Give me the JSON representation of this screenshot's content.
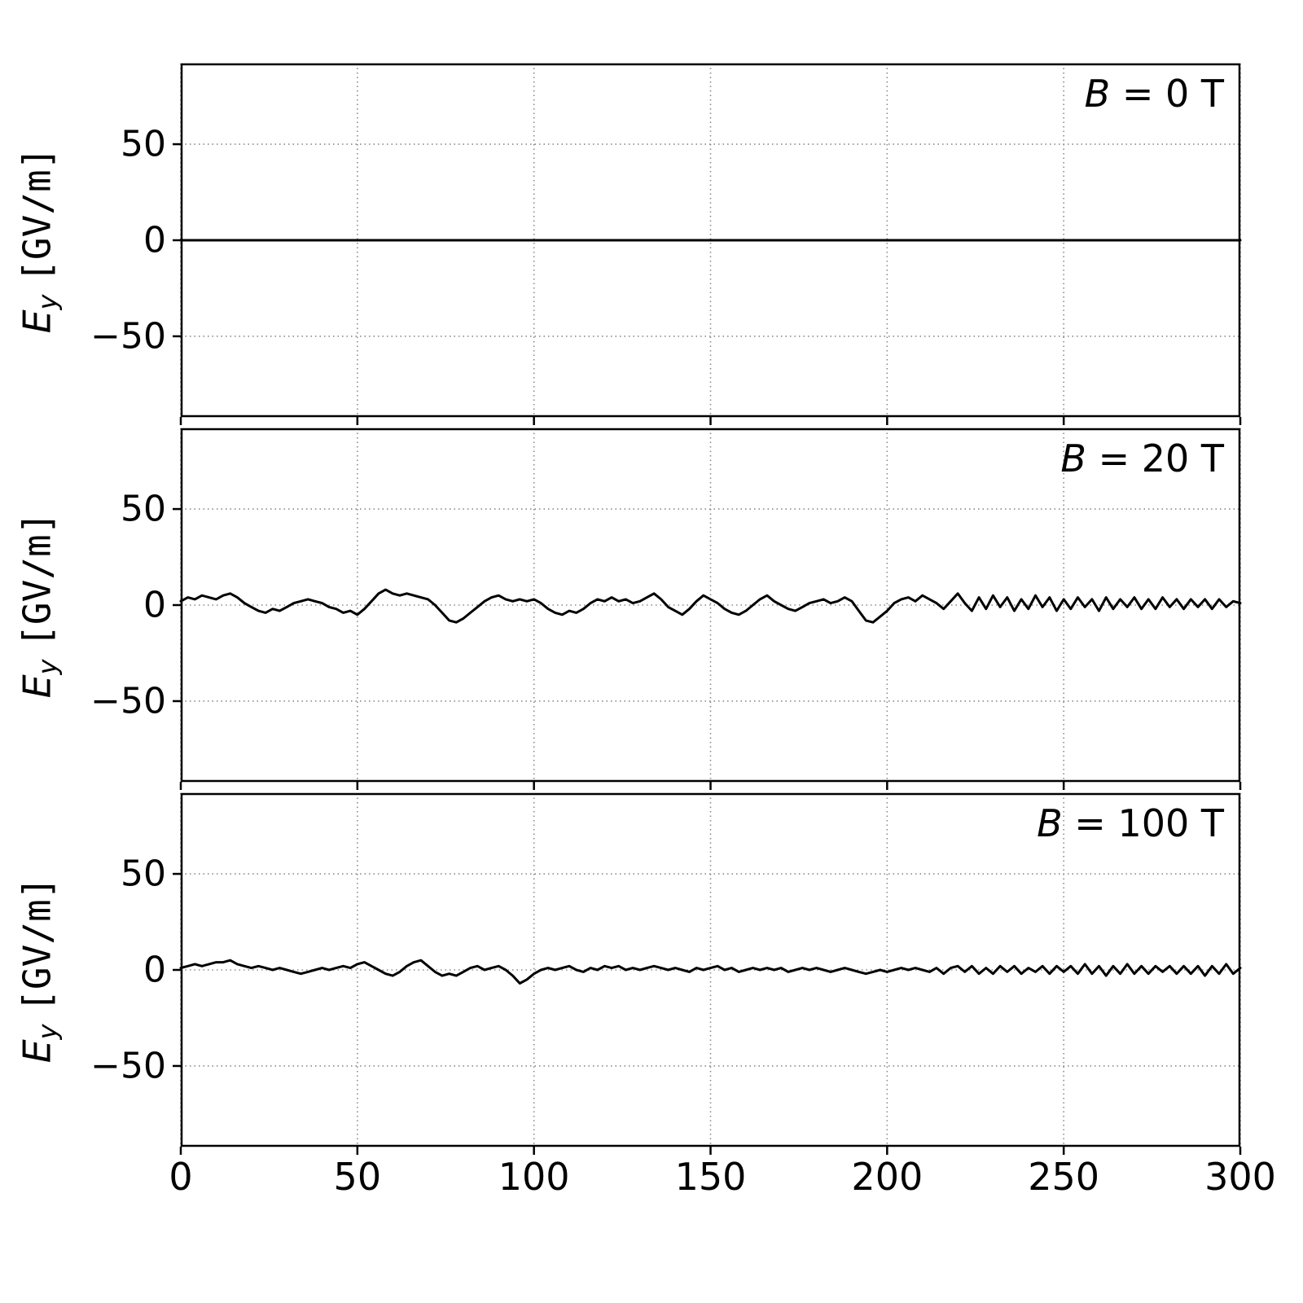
{
  "chart_data": {
    "type": "line",
    "title": "",
    "xlabel": "",
    "ylabel": {
      "variable": "E",
      "subscript": "y",
      "unit": "[GV/m]"
    },
    "xlim": [
      0,
      300
    ],
    "ylim": [
      -92,
      92
    ],
    "xticks": [
      0,
      50,
      100,
      150,
      200,
      250,
      300
    ],
    "xticklabels": [
      "0",
      "50",
      "100",
      "150",
      "200",
      "250",
      "300"
    ],
    "yticks": [
      50,
      0,
      -50
    ],
    "yticklabels": [
      "50",
      "0",
      "−50"
    ],
    "grid": "dotted",
    "line_color": "#000000",
    "grid_color": "#8a8a8a",
    "panels": [
      {
        "annotation": {
          "symbol": "B",
          "rest": " = 0 T"
        },
        "B_tesla": 0,
        "x": [
          0,
          300
        ],
        "values": [
          0,
          0
        ]
      },
      {
        "annotation": {
          "symbol": "B",
          "rest": " = 20 T"
        },
        "B_tesla": 20,
        "x_start": 0,
        "x_step": 2,
        "values": [
          2,
          4,
          3,
          5,
          4,
          3,
          5,
          6,
          4,
          1,
          -1,
          -3,
          -4,
          -2,
          -3,
          -1,
          1,
          2,
          3,
          2,
          1,
          -1,
          -2,
          -4,
          -3,
          -5,
          -2,
          2,
          6,
          8,
          6,
          5,
          6,
          5,
          4,
          3,
          0,
          -4,
          -8,
          -9,
          -7,
          -4,
          -1,
          2,
          4,
          5,
          3,
          2,
          3,
          2,
          3,
          1,
          -2,
          -4,
          -5,
          -3,
          -4,
          -2,
          1,
          3,
          2,
          4,
          2,
          3,
          1,
          2,
          4,
          6,
          3,
          -1,
          -3,
          -5,
          -2,
          2,
          5,
          3,
          1,
          -2,
          -4,
          -5,
          -3,
          0,
          3,
          5,
          2,
          0,
          -2,
          -3,
          -1,
          1,
          2,
          3,
          1,
          2,
          4,
          2,
          -3,
          -8,
          -9,
          -6,
          -3,
          1,
          3,
          4,
          2,
          5,
          3,
          1,
          -2,
          2,
          6,
          1,
          -3,
          4,
          -2,
          5,
          -1,
          4,
          -3,
          3,
          -2,
          5,
          -1,
          4,
          -3,
          3,
          -2,
          4,
          -1,
          3,
          -3,
          4,
          -2,
          3,
          -1,
          4,
          -2,
          3,
          -2,
          4,
          -1,
          3,
          -2,
          3,
          -1,
          3,
          -2,
          3,
          -1,
          2,
          1
        ]
      },
      {
        "annotation": {
          "symbol": "B",
          "rest": " = 100 T"
        },
        "B_tesla": 100,
        "x_start": 0,
        "x_step": 2,
        "values": [
          1,
          2,
          3,
          2,
          3,
          4,
          4,
          5,
          3,
          2,
          1,
          2,
          1,
          0,
          1,
          0,
          -1,
          -2,
          -1,
          0,
          1,
          0,
          1,
          2,
          1,
          3,
          4,
          2,
          0,
          -2,
          -3,
          -1,
          2,
          4,
          5,
          2,
          -1,
          -3,
          -2,
          -3,
          -1,
          1,
          2,
          0,
          1,
          2,
          0,
          -3,
          -7,
          -5,
          -2,
          0,
          1,
          0,
          1,
          2,
          0,
          -1,
          1,
          0,
          2,
          1,
          2,
          0,
          1,
          0,
          1,
          2,
          1,
          0,
          1,
          0,
          -1,
          1,
          0,
          1,
          2,
          0,
          1,
          -1,
          0,
          1,
          0,
          1,
          0,
          1,
          -1,
          0,
          1,
          0,
          1,
          0,
          -1,
          0,
          1,
          0,
          -1,
          -2,
          -1,
          0,
          -1,
          0,
          1,
          0,
          1,
          0,
          -1,
          1,
          -2,
          1,
          2,
          -1,
          2,
          -2,
          1,
          -2,
          2,
          -1,
          2,
          -2,
          1,
          -1,
          2,
          -2,
          2,
          -1,
          2,
          -2,
          3,
          -2,
          2,
          -3,
          2,
          -2,
          3,
          -2,
          2,
          -2,
          2,
          -1,
          2,
          -2,
          2,
          -2,
          2,
          -3,
          2,
          -2,
          3,
          -2,
          1
        ]
      }
    ]
  }
}
